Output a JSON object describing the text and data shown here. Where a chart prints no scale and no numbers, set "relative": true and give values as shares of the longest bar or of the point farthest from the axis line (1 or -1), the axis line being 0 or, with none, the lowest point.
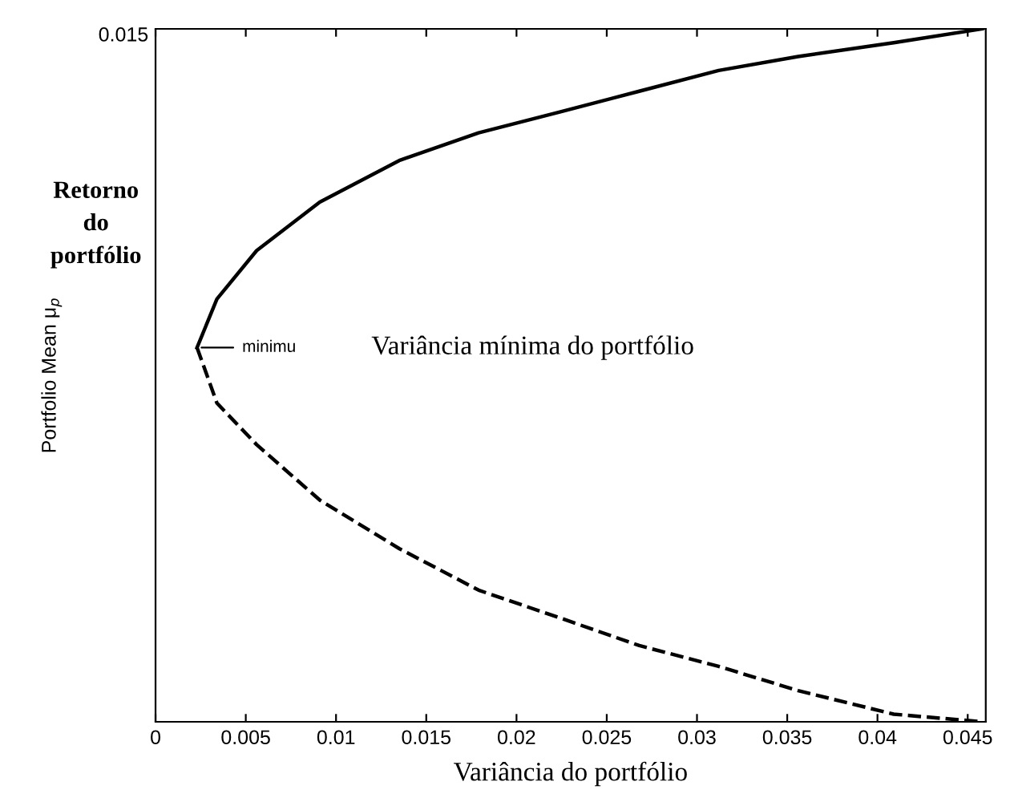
{
  "chart_data": {
    "type": "line",
    "relative": true,
    "xlabel": "Variância do portfólio",
    "ylabel": "Portfolio Mean μ$_{p}$",
    "xlim": [
      0,
      0.046
    ],
    "xticks": [
      0,
      0.005,
      0.01,
      0.015,
      0.02,
      0.025,
      0.03,
      0.035,
      0.04,
      0.045
    ],
    "grid": false,
    "legend": false,
    "series": [
      {
        "color": "#000000",
        "line_style": "solid",
        "x": [
          0.0023,
          0.0034,
          0.0056,
          0.0091,
          0.0135,
          0.0179,
          0.0224,
          0.0268,
          0.0312,
          0.0356,
          0.0409,
          0.0458
        ],
        "values": [
          0.54,
          0.61,
          0.68,
          0.75,
          0.81,
          0.85,
          0.88,
          0.91,
          0.94,
          0.96,
          0.98,
          1
        ]
      },
      {
        "color": "#000000",
        "line_style": "dashed",
        "x": [
          0.0023,
          0.0034,
          0.0056,
          0.0091,
          0.0135,
          0.0179,
          0.0224,
          0.0268,
          0.0312,
          0.0356,
          0.0409,
          0.0458
        ],
        "values": [
          0.54,
          0.46,
          0.4,
          0.32,
          0.25,
          0.19,
          0.15,
          0.11,
          0.08,
          0.045,
          0.011,
          0
        ]
      }
    ],
    "annotations": [
      {
        "text": "minimu",
        "x": 0.0023,
        "y": 0.54
      },
      "Variância mínima do portfólio",
      "Retorno do portfólio",
      "0.015"
    ]
  }
}
